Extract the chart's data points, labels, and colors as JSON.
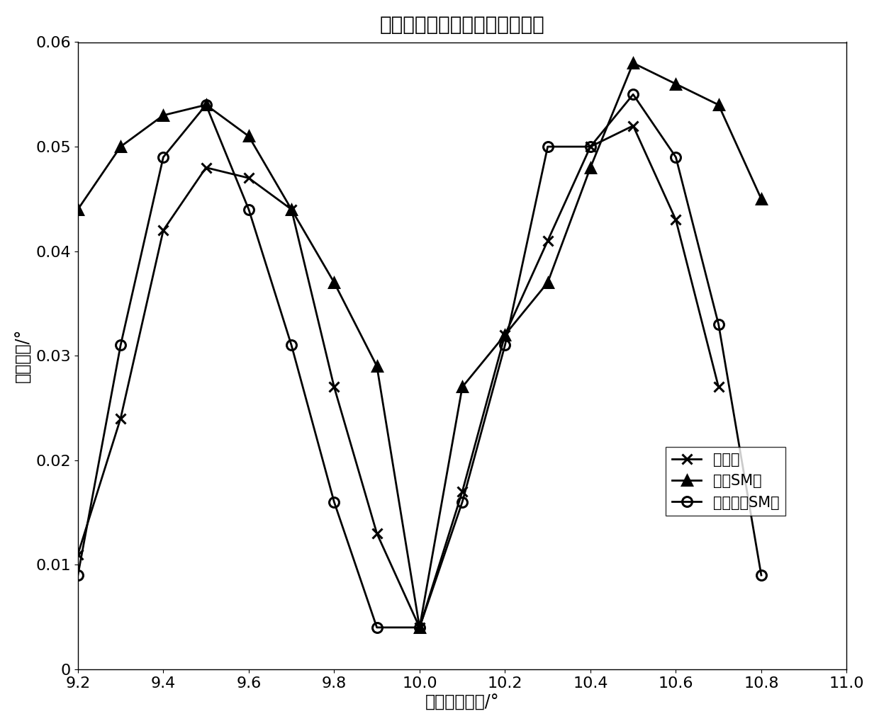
{
  "title": "不同和差跟踪测角方法误差对比",
  "xlabel": "实际目标方向/°",
  "ylabel": "测角误差/°",
  "xlim": [
    9.2,
    11.0
  ],
  "ylim": [
    0,
    0.06
  ],
  "xticks": [
    9.2,
    9.4,
    9.6,
    9.8,
    10.0,
    10.2,
    10.4,
    10.6,
    10.8,
    11.0
  ],
  "yticks": [
    0,
    0.01,
    0.02,
    0.03,
    0.04,
    0.05,
    0.06
  ],
  "ytick_labels": [
    "0",
    "0.01",
    "0.02",
    "0.03",
    "0.04",
    "0.05",
    "0.06"
  ],
  "series": [
    {
      "label": "普通权",
      "marker": "x",
      "x": [
        9.2,
        9.3,
        9.4,
        9.5,
        9.6,
        9.7,
        9.8,
        9.9,
        10.0,
        10.1,
        10.2,
        10.3,
        10.4,
        10.5,
        10.6,
        10.7
      ],
      "y": [
        0.011,
        0.024,
        0.042,
        0.048,
        0.047,
        0.044,
        0.027,
        0.013,
        0.004,
        0.017,
        0.032,
        0.041,
        0.05,
        0.052,
        0.043,
        0.027
      ]
    },
    {
      "label": "常规SM权",
      "marker": "^",
      "x": [
        9.2,
        9.3,
        9.4,
        9.5,
        9.6,
        9.7,
        9.8,
        9.9,
        10.0,
        10.1,
        10.2,
        10.3,
        10.4,
        10.5,
        10.6,
        10.7,
        10.8
      ],
      "y": [
        0.044,
        0.05,
        0.053,
        0.054,
        0.051,
        0.044,
        0.037,
        0.029,
        0.004,
        0.027,
        0.032,
        0.037,
        0.048,
        0.058,
        0.056,
        0.054,
        0.045
      ]
    },
    {
      "label": "分块并行SM权",
      "marker": "o",
      "x": [
        9.2,
        9.3,
        9.4,
        9.5,
        9.6,
        9.7,
        9.8,
        9.9,
        10.0,
        10.1,
        10.2,
        10.3,
        10.4,
        10.5,
        10.6,
        10.7,
        10.8
      ],
      "y": [
        0.009,
        0.031,
        0.049,
        0.054,
        0.044,
        0.031,
        0.016,
        0.004,
        0.004,
        0.016,
        0.031,
        0.05,
        0.05,
        0.055,
        0.049,
        0.033,
        0.009
      ]
    }
  ],
  "line_color": "#000000",
  "line_width": 2.0,
  "marker_size": 10,
  "title_fontsize": 20,
  "label_fontsize": 17,
  "tick_fontsize": 16,
  "legend_fontsize": 15
}
